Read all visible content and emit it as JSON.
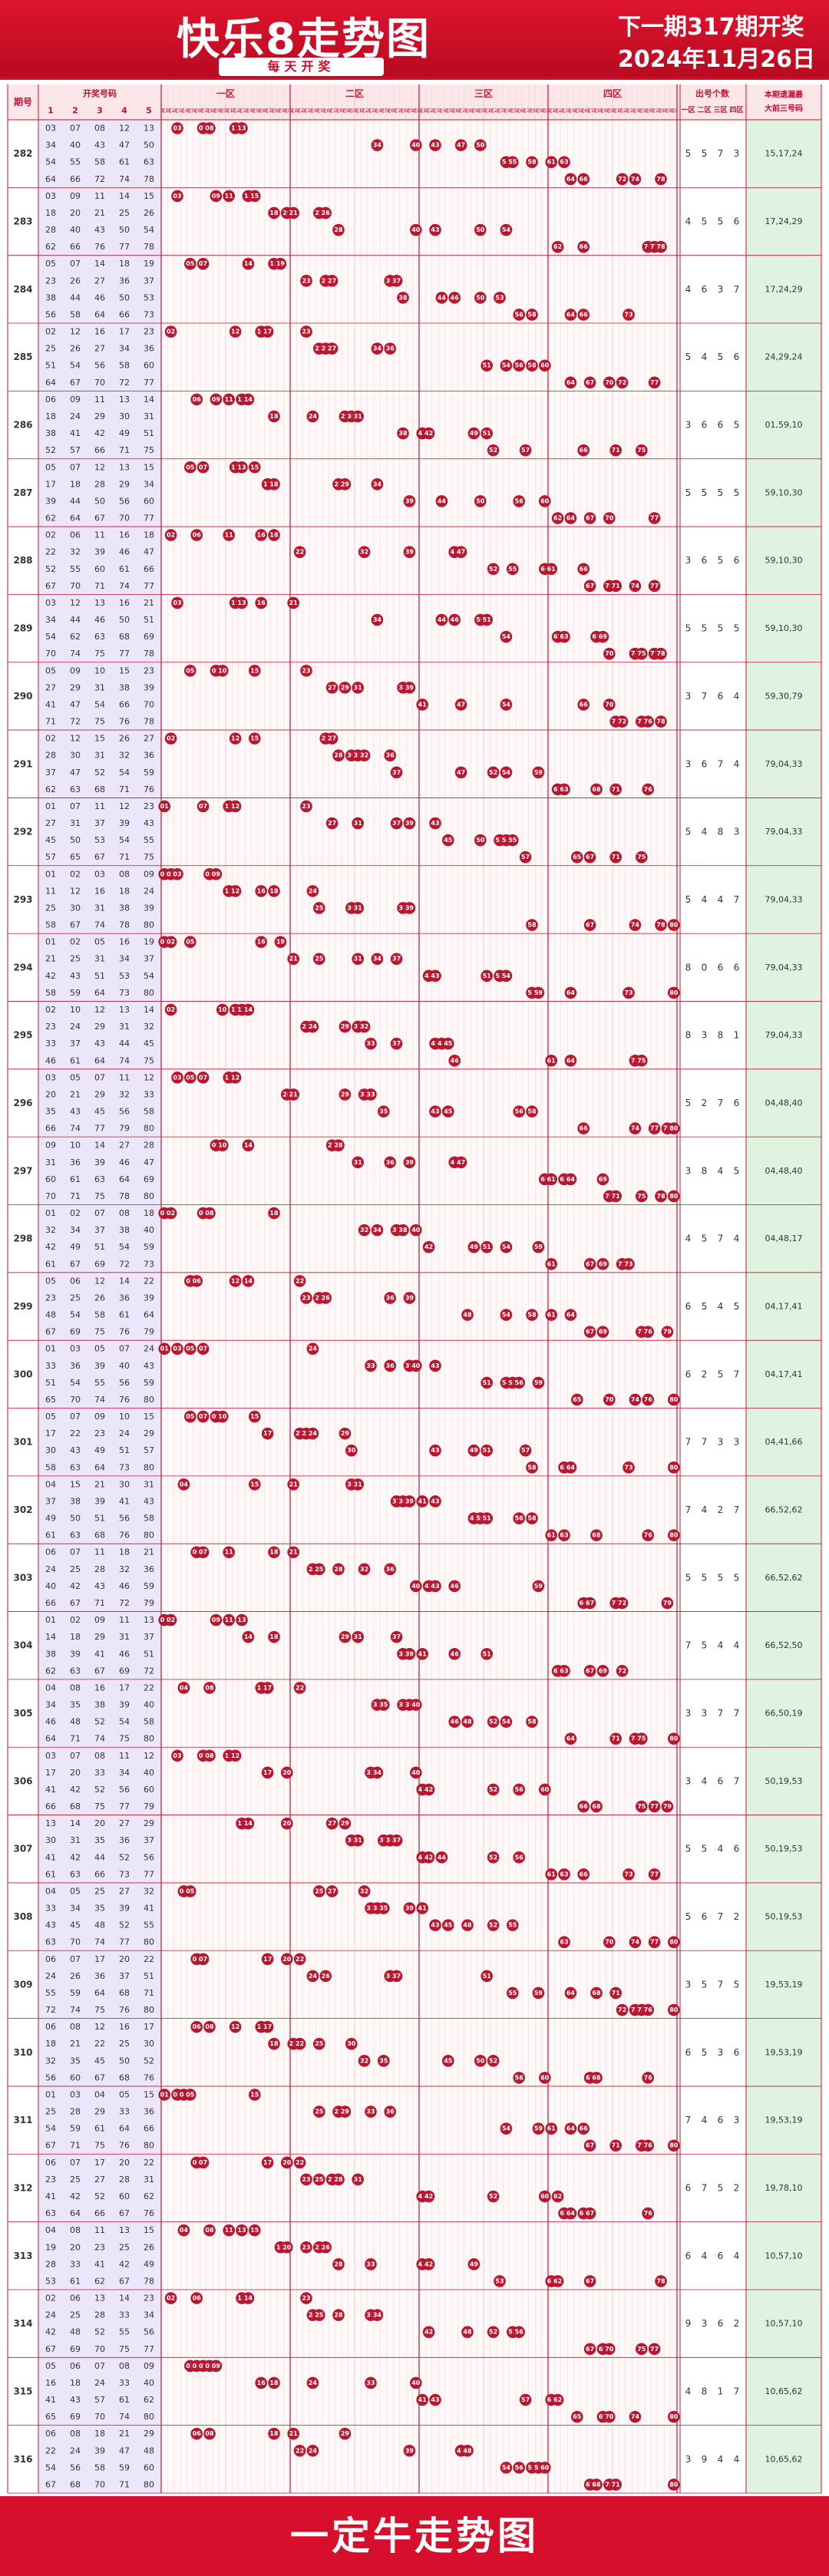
{
  "header": {
    "title": "快乐8走势图",
    "subtitle": "每天开奖",
    "next_draw": "下一期317期开奖",
    "date": "2024年11月26日"
  },
  "footer": {
    "text": "一定牛走势图"
  },
  "colors": {
    "brand": "#c8102e",
    "ball": "#b8172f",
    "light_green": "#dff3e0",
    "light_purple": "#ece6fb",
    "light_red": "#fbe7ea"
  },
  "table_headers": {
    "period": "期号",
    "draw_numbers": "开奖号码",
    "col_index": [
      "1",
      "2",
      "3",
      "4",
      "5"
    ],
    "zones": [
      "一区",
      "二区",
      "三区",
      "四区"
    ],
    "tails": [
      "尾1",
      "尾2",
      "尾3",
      "尾4",
      "尾5",
      "尾6",
      "尾7",
      "尾8",
      "尾9",
      "尾0"
    ],
    "count_title": "出号个数",
    "count_cols": [
      "一区",
      "二区",
      "三区",
      "四区"
    ],
    "miss_title": "本期遗漏最",
    "miss_sub": "大前三号码"
  },
  "chart_data": {
    "type": "table",
    "rows": [
      {
        "period": "282",
        "numbers": [
          3,
          7,
          8,
          12,
          13,
          34,
          40,
          43,
          47,
          50,
          54,
          55,
          58,
          61,
          63,
          64,
          66,
          72,
          74,
          78
        ],
        "counts": [
          5,
          5,
          7,
          3
        ],
        "miss": "15,17,24"
      },
      {
        "period": "283",
        "numbers": [
          3,
          9,
          11,
          14,
          15,
          18,
          20,
          21,
          25,
          26,
          28,
          40,
          43,
          50,
          54,
          62,
          66,
          76,
          77,
          78
        ],
        "counts": [
          4,
          5,
          5,
          6
        ],
        "miss": "17,24,29"
      },
      {
        "period": "284",
        "numbers": [
          5,
          7,
          14,
          18,
          19,
          23,
          26,
          27,
          36,
          37,
          38,
          44,
          46,
          50,
          53,
          56,
          58,
          64,
          66,
          73
        ],
        "counts": [
          4,
          6,
          3,
          7
        ],
        "miss": "17,24,29"
      },
      {
        "period": "285",
        "numbers": [
          2,
          12,
          16,
          17,
          23,
          25,
          26,
          27,
          34,
          36,
          51,
          54,
          56,
          58,
          60,
          64,
          67,
          70,
          72,
          77
        ],
        "counts": [
          5,
          4,
          5,
          6
        ],
        "miss": "24,29,24"
      },
      {
        "period": "286",
        "numbers": [
          6,
          9,
          11,
          13,
          14,
          18,
          24,
          29,
          30,
          31,
          38,
          41,
          42,
          49,
          51,
          52,
          57,
          66,
          71,
          75
        ],
        "counts": [
          3,
          6,
          6,
          5
        ],
        "miss": "01,59,10"
      },
      {
        "period": "287",
        "numbers": [
          5,
          7,
          12,
          13,
          15,
          17,
          18,
          28,
          29,
          34,
          39,
          44,
          50,
          56,
          60,
          62,
          64,
          67,
          70,
          77
        ],
        "counts": [
          5,
          5,
          5,
          5
        ],
        "miss": "59,10,30"
      },
      {
        "period": "288",
        "numbers": [
          2,
          6,
          11,
          16,
          18,
          22,
          32,
          39,
          46,
          47,
          52,
          55,
          60,
          61,
          66,
          67,
          70,
          71,
          74,
          77
        ],
        "counts": [
          3,
          6,
          5,
          6
        ],
        "miss": "59,10,30"
      },
      {
        "period": "289",
        "numbers": [
          3,
          12,
          13,
          16,
          21,
          34,
          44,
          46,
          50,
          51,
          54,
          62,
          63,
          68,
          69,
          70,
          74,
          75,
          77,
          78
        ],
        "counts": [
          5,
          5,
          5,
          5
        ],
        "miss": "59,10,30"
      },
      {
        "period": "290",
        "numbers": [
          5,
          9,
          10,
          15,
          23,
          27,
          29,
          31,
          38,
          39,
          41,
          47,
          54,
          66,
          70,
          71,
          72,
          75,
          76,
          78
        ],
        "counts": [
          3,
          7,
          6,
          4
        ],
        "miss": "59,30,79"
      },
      {
        "period": "291",
        "numbers": [
          2,
          12,
          15,
          26,
          27,
          28,
          30,
          31,
          32,
          36,
          37,
          47,
          52,
          54,
          59,
          62,
          63,
          68,
          71,
          76
        ],
        "counts": [
          3,
          6,
          7,
          4
        ],
        "miss": "79,04,33"
      },
      {
        "period": "292",
        "numbers": [
          1,
          7,
          11,
          12,
          23,
          27,
          31,
          37,
          39,
          43,
          45,
          50,
          53,
          54,
          55,
          57,
          65,
          67,
          71,
          75
        ],
        "counts": [
          5,
          4,
          8,
          3
        ],
        "miss": "79,04,33"
      },
      {
        "period": "293",
        "numbers": [
          1,
          2,
          3,
          8,
          9,
          11,
          12,
          16,
          18,
          24,
          25,
          30,
          31,
          38,
          39,
          58,
          67,
          74,
          78,
          80
        ],
        "counts": [
          5,
          4,
          4,
          7
        ],
        "miss": "79,04,33"
      },
      {
        "period": "294",
        "numbers": [
          1,
          2,
          5,
          16,
          19,
          21,
          25,
          31,
          34,
          37,
          42,
          43,
          51,
          53,
          54,
          58,
          59,
          64,
          73,
          80
        ],
        "counts": [
          8,
          0,
          6,
          6
        ],
        "miss": "79,04,33"
      },
      {
        "period": "295",
        "numbers": [
          2,
          10,
          12,
          13,
          14,
          23,
          24,
          29,
          31,
          32,
          33,
          37,
          43,
          44,
          45,
          46,
          61,
          64,
          74,
          75
        ],
        "counts": [
          8,
          3,
          8,
          1
        ],
        "miss": "79,04,33"
      },
      {
        "period": "296",
        "numbers": [
          3,
          5,
          7,
          11,
          12,
          20,
          21,
          29,
          32,
          33,
          35,
          43,
          45,
          56,
          58,
          66,
          74,
          77,
          79,
          80
        ],
        "counts": [
          5,
          2,
          7,
          6
        ],
        "miss": "04,48,40"
      },
      {
        "period": "297",
        "numbers": [
          9,
          10,
          14,
          27,
          28,
          31,
          36,
          39,
          46,
          47,
          60,
          61,
          63,
          64,
          69,
          70,
          71,
          75,
          78,
          80
        ],
        "counts": [
          3,
          8,
          4,
          5
        ],
        "miss": "04,48,40"
      },
      {
        "period": "298",
        "numbers": [
          1,
          2,
          7,
          8,
          18,
          32,
          34,
          37,
          38,
          40,
          42,
          49,
          51,
          54,
          59,
          61,
          67,
          69,
          72,
          73
        ],
        "counts": [
          4,
          5,
          7,
          4
        ],
        "miss": "04,48,17"
      },
      {
        "period": "299",
        "numbers": [
          5,
          6,
          12,
          14,
          22,
          23,
          25,
          26,
          36,
          39,
          48,
          54,
          58,
          61,
          64,
          67,
          69,
          75,
          76,
          79
        ],
        "counts": [
          6,
          5,
          4,
          5
        ],
        "miss": "04,17,41"
      },
      {
        "period": "300",
        "numbers": [
          1,
          3,
          5,
          7,
          24,
          33,
          36,
          39,
          40,
          43,
          51,
          54,
          55,
          56,
          59,
          65,
          70,
          74,
          76,
          80
        ],
        "counts": [
          6,
          2,
          5,
          7
        ],
        "miss": "04,17,41"
      },
      {
        "period": "301",
        "numbers": [
          5,
          7,
          9,
          10,
          15,
          17,
          22,
          23,
          24,
          29,
          30,
          43,
          49,
          51,
          57,
          58,
          63,
          64,
          73,
          80
        ],
        "counts": [
          7,
          7,
          3,
          3
        ],
        "miss": "04,41,66"
      },
      {
        "period": "302",
        "numbers": [
          4,
          15,
          21,
          30,
          31,
          37,
          38,
          39,
          41,
          43,
          49,
          50,
          51,
          56,
          58,
          61,
          63,
          68,
          76,
          80
        ],
        "counts": [
          7,
          4,
          2,
          7
        ],
        "miss": "66,52,62"
      },
      {
        "period": "303",
        "numbers": [
          6,
          7,
          11,
          18,
          21,
          24,
          25,
          28,
          32,
          36,
          40,
          42,
          43,
          46,
          59,
          66,
          67,
          71,
          72,
          79
        ],
        "counts": [
          5,
          5,
          5,
          5
        ],
        "miss": "66,52,62"
      },
      {
        "period": "304",
        "numbers": [
          1,
          2,
          9,
          11,
          13,
          14,
          18,
          29,
          31,
          37,
          38,
          39,
          41,
          46,
          51,
          62,
          63,
          67,
          69,
          72
        ],
        "counts": [
          7,
          5,
          4,
          4
        ],
        "miss": "66,52,50"
      },
      {
        "period": "305",
        "numbers": [
          4,
          8,
          16,
          17,
          22,
          34,
          35,
          38,
          39,
          40,
          46,
          48,
          52,
          54,
          58,
          64,
          71,
          74,
          75,
          80
        ],
        "counts": [
          3,
          3,
          7,
          7
        ],
        "miss": "66,50,19"
      },
      {
        "period": "306",
        "numbers": [
          3,
          7,
          8,
          11,
          12,
          17,
          20,
          33,
          34,
          40,
          41,
          42,
          52,
          56,
          60,
          66,
          68,
          75,
          77,
          79
        ],
        "counts": [
          3,
          4,
          6,
          7
        ],
        "miss": "50,19,53"
      },
      {
        "period": "307",
        "numbers": [
          13,
          14,
          20,
          27,
          29,
          30,
          31,
          35,
          36,
          37,
          41,
          42,
          44,
          52,
          56,
          61,
          63,
          66,
          73,
          77
        ],
        "counts": [
          5,
          5,
          4,
          6
        ],
        "miss": "50,19,53"
      },
      {
        "period": "308",
        "numbers": [
          4,
          5,
          25,
          27,
          32,
          33,
          34,
          35,
          39,
          41,
          43,
          45,
          48,
          52,
          55,
          63,
          70,
          74,
          77,
          80
        ],
        "counts": [
          5,
          6,
          7,
          2
        ],
        "miss": "50,19,53"
      },
      {
        "period": "309",
        "numbers": [
          6,
          7,
          17,
          20,
          22,
          24,
          26,
          36,
          37,
          51,
          55,
          59,
          64,
          68,
          71,
          72,
          74,
          75,
          76,
          80
        ],
        "counts": [
          3,
          5,
          7,
          5
        ],
        "miss": "19,53,19"
      },
      {
        "period": "310",
        "numbers": [
          6,
          8,
          12,
          16,
          17,
          18,
          21,
          22,
          25,
          30,
          32,
          35,
          45,
          50,
          52,
          56,
          60,
          67,
          68,
          76
        ],
        "counts": [
          6,
          5,
          3,
          6
        ],
        "miss": "19,53,19"
      },
      {
        "period": "311",
        "numbers": [
          1,
          3,
          4,
          5,
          15,
          25,
          28,
          29,
          33,
          36,
          54,
          59,
          61,
          64,
          66,
          67,
          71,
          75,
          76,
          80
        ],
        "counts": [
          7,
          4,
          6,
          3
        ],
        "miss": "19,53,19"
      },
      {
        "period": "312",
        "numbers": [
          6,
          7,
          17,
          20,
          22,
          23,
          25,
          27,
          28,
          31,
          41,
          42,
          52,
          60,
          62,
          63,
          64,
          66,
          67,
          76
        ],
        "counts": [
          6,
          7,
          5,
          2
        ],
        "miss": "19,78,10"
      },
      {
        "period": "313",
        "numbers": [
          4,
          8,
          11,
          13,
          15,
          19,
          20,
          23,
          25,
          26,
          28,
          33,
          41,
          42,
          49,
          53,
          61,
          62,
          67,
          78
        ],
        "counts": [
          6,
          4,
          6,
          4
        ],
        "miss": "10,57,10"
      },
      {
        "period": "314",
        "numbers": [
          2,
          6,
          13,
          14,
          23,
          24,
          25,
          28,
          33,
          34,
          42,
          48,
          52,
          55,
          56,
          67,
          69,
          70,
          75,
          77
        ],
        "counts": [
          9,
          3,
          6,
          2
        ],
        "miss": "10,57,10"
      },
      {
        "period": "315",
        "numbers": [
          5,
          6,
          7,
          8,
          9,
          16,
          18,
          24,
          33,
          40,
          41,
          43,
          57,
          61,
          62,
          65,
          69,
          70,
          74,
          80
        ],
        "counts": [
          4,
          8,
          1,
          7
        ],
        "miss": "10,65,62"
      },
      {
        "period": "316",
        "numbers": [
          6,
          8,
          18,
          21,
          29,
          22,
          24,
          39,
          47,
          48,
          54,
          56,
          58,
          59,
          60,
          67,
          68,
          70,
          71,
          80
        ],
        "counts": [
          3,
          9,
          4,
          4
        ],
        "miss": "10,65,62"
      }
    ]
  }
}
